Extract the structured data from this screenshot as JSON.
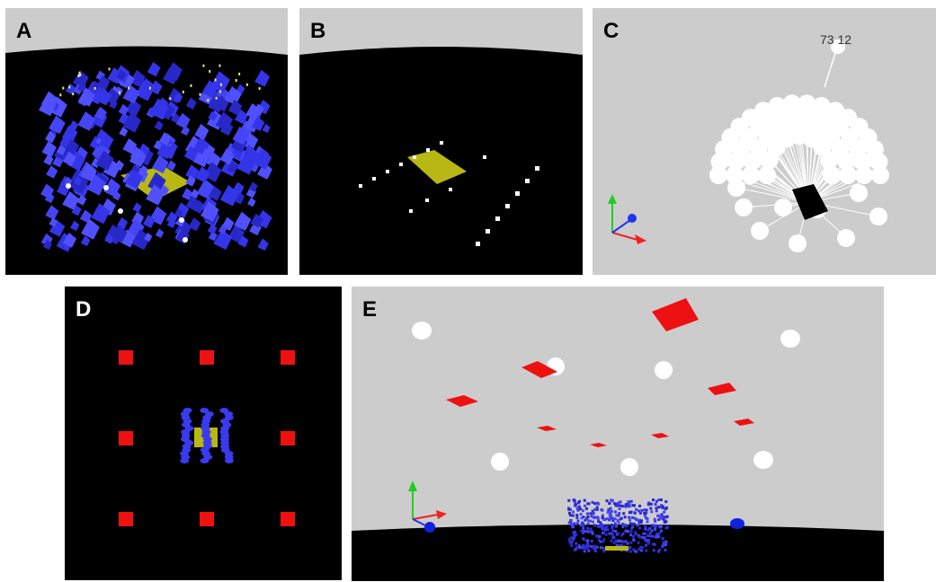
{
  "panels": [
    {
      "label": "A"
    },
    {
      "label": "B"
    },
    {
      "label": "C",
      "annotation": "73 12"
    },
    {
      "label": "D"
    },
    {
      "label": "E"
    }
  ],
  "colors": {
    "sky": "#cccccc",
    "ground": "#000000",
    "leaf": "#3a3af0",
    "plate": "#b8b814",
    "sensor": "#ffffff",
    "light_source": "#ee1111",
    "axis_x": "#ee2222",
    "axis_y": "#22cc22",
    "axis_z": "#2233ee"
  }
}
